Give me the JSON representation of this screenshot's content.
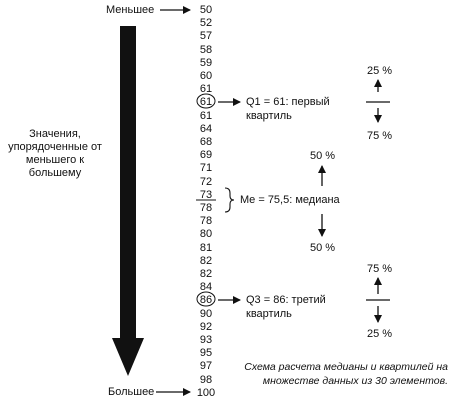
{
  "labels": {
    "smaller": "Меньшее",
    "larger": "Большее",
    "side_label": "Значения, упорядоченные от меньшего к большему"
  },
  "values": [
    "50",
    "52",
    "57",
    "58",
    "59",
    "60",
    "61",
    "61",
    "61",
    "64",
    "68",
    "69",
    "71",
    "72",
    "73",
    "78",
    "78",
    "80",
    "81",
    "82",
    "82",
    "84",
    "86",
    "90",
    "92",
    "93",
    "95",
    "97",
    "98",
    "100"
  ],
  "q1": {
    "text_line1": "Q1 = 61: первый",
    "text_line2": "квартиль",
    "pct_top": "25 %",
    "pct_bottom": "75 %"
  },
  "median": {
    "text": "Me = 75,5: медиана",
    "pct_top": "50 %",
    "pct_bottom": "50 %"
  },
  "q3": {
    "text_line1": "Q3 = 86: третий",
    "text_line2": "квартиль",
    "pct_top": "75 %",
    "pct_bottom": "25 %"
  },
  "caption": "Схема расчета медианы и квартилей на множестве данных из 30 элементов."
}
